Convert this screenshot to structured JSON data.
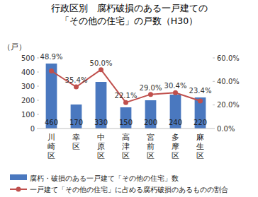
{
  "chart_data": {
    "type": "bar",
    "title": "行政区別　腐朽破損のある一戸建ての",
    "subtitle": "「その他の住宅」の戸数（H30）",
    "ylabel": "（戸）",
    "categories": [
      "川崎区",
      "幸区",
      "中原区",
      "高津区",
      "宮前区",
      "多摩区",
      "麻生区"
    ],
    "series": [
      {
        "name": "腐朽・破損のある一戸建て「その他の住宅」数",
        "type": "bar",
        "color": "#4a78bf",
        "values": [
          460,
          170,
          330,
          150,
          200,
          240,
          220
        ]
      },
      {
        "name": "一戸建て「その他の住宅」に占める腐朽破損のあるものの割合",
        "type": "line",
        "color": "#c0504d",
        "axis": "y2",
        "marker": "circle",
        "values": [
          48.9,
          35.4,
          50.0,
          22.1,
          29.0,
          30.4,
          23.4
        ],
        "value_labels": [
          "48.9%",
          "35.4%",
          "50.0%",
          "22.1%",
          "29.0%",
          "30.4%",
          "23.4%"
        ]
      }
    ],
    "ylim": [
      0,
      500
    ],
    "yticks": [
      0,
      100,
      200,
      300,
      400,
      500
    ],
    "y2lim": [
      0,
      60
    ],
    "y2ticks": [
      {
        "value": 0,
        "label": "0.0%"
      },
      {
        "value": 20,
        "label": "20.0%"
      },
      {
        "value": 40,
        "label": "40.0%"
      },
      {
        "value": 60,
        "label": "60.0%"
      }
    ],
    "grid": false,
    "data_labels": true,
    "legend": "bottom"
  }
}
